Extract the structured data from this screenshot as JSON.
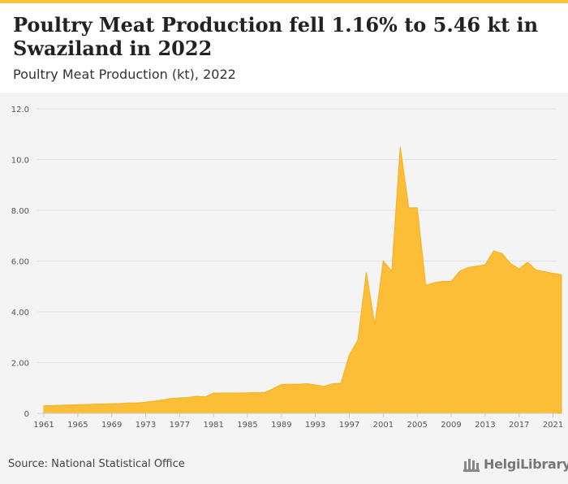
{
  "header": {
    "title": "Poultry Meat Production fell 1.16% to 5.46 kt in Swaziland in 2022",
    "subtitle": "Poultry Meat Production (kt), 2022"
  },
  "footer": {
    "source": "Source: National Statistical Office",
    "logo_text": "HelgiLibrary"
  },
  "colors": {
    "area_fill": "#fbbe36",
    "area_stroke": "#f4b01f",
    "accent_bar": "#f7c63b"
  },
  "chart_data": {
    "type": "area",
    "title": "Poultry Meat Production (kt), 2022",
    "xlabel": "",
    "ylabel": "",
    "ylim": [
      0,
      12
    ],
    "yticks": [
      "0",
      "2.00",
      "4.00",
      "6.00",
      "8.00",
      "10.0",
      "12.0"
    ],
    "xticks": [
      "1961",
      "1965",
      "1969",
      "1973",
      "1977",
      "1981",
      "1985",
      "1989",
      "1993",
      "1997",
      "2001",
      "2005",
      "2009",
      "2013",
      "2017",
      "2021"
    ],
    "grid": true,
    "series": [
      {
        "x": [
          1961,
          1962,
          1963,
          1964,
          1965,
          1966,
          1967,
          1968,
          1969,
          1970,
          1971,
          1972,
          1973,
          1974,
          1975,
          1976,
          1977,
          1978,
          1979,
          1980,
          1981,
          1982,
          1983,
          1984,
          1985,
          1986,
          1987,
          1988,
          1989,
          1990,
          1991,
          1992,
          1993,
          1994,
          1995,
          1996,
          1997,
          1998,
          1999,
          2000,
          2001,
          2002,
          2003,
          2004,
          2005,
          2006,
          2007,
          2008,
          2009,
          2010,
          2011,
          2012,
          2013,
          2014,
          2015,
          2016,
          2017,
          2018,
          2019,
          2020,
          2021,
          2022
        ],
        "values": [
          0.3,
          0.31,
          0.32,
          0.33,
          0.34,
          0.35,
          0.36,
          0.37,
          0.38,
          0.39,
          0.41,
          0.41,
          0.44,
          0.48,
          0.53,
          0.59,
          0.61,
          0.63,
          0.67,
          0.65,
          0.8,
          0.8,
          0.8,
          0.8,
          0.81,
          0.82,
          0.82,
          0.97,
          1.14,
          1.15,
          1.15,
          1.17,
          1.12,
          1.06,
          1.17,
          1.18,
          2.3,
          2.88,
          5.55,
          3.5,
          6.0,
          5.6,
          10.5,
          8.1,
          8.1,
          5.05,
          5.15,
          5.2,
          5.2,
          5.6,
          5.75,
          5.8,
          5.85,
          6.4,
          6.3,
          5.9,
          5.7,
          5.95,
          5.65,
          5.58,
          5.52,
          5.46
        ]
      }
    ]
  }
}
